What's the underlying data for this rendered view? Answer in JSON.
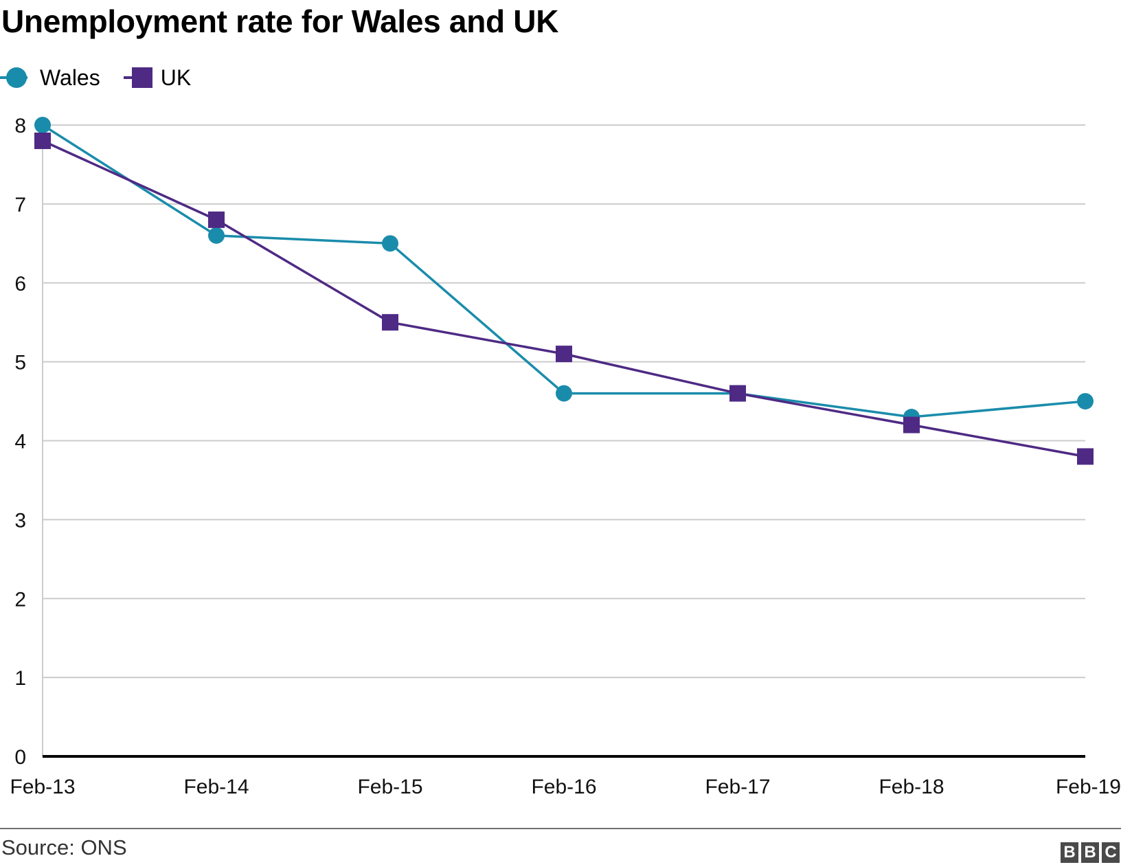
{
  "chart_data": {
    "type": "line",
    "title": "Unemployment rate for Wales and UK",
    "x": [
      "Feb-13",
      "Feb-14",
      "Feb-15",
      "Feb-16",
      "Feb-17",
      "Feb-18",
      "Feb-19"
    ],
    "series": [
      {
        "name": "Wales",
        "values": [
          8.0,
          6.6,
          6.5,
          4.6,
          4.6,
          4.3,
          4.5
        ],
        "color": "#1a8cab",
        "marker": "circle"
      },
      {
        "name": "UK",
        "values": [
          7.8,
          6.8,
          5.5,
          5.1,
          4.6,
          4.2,
          3.8
        ],
        "color": "#4e2a84",
        "marker": "square"
      }
    ],
    "ylim": [
      0,
      8
    ],
    "yticks": [
      0,
      1,
      2,
      3,
      4,
      5,
      6,
      7,
      8
    ],
    "grid": true,
    "legend": "top-left",
    "xlabel": "",
    "ylabel": ""
  },
  "source": "Source: ONS",
  "logo": [
    "B",
    "B",
    "C"
  ]
}
